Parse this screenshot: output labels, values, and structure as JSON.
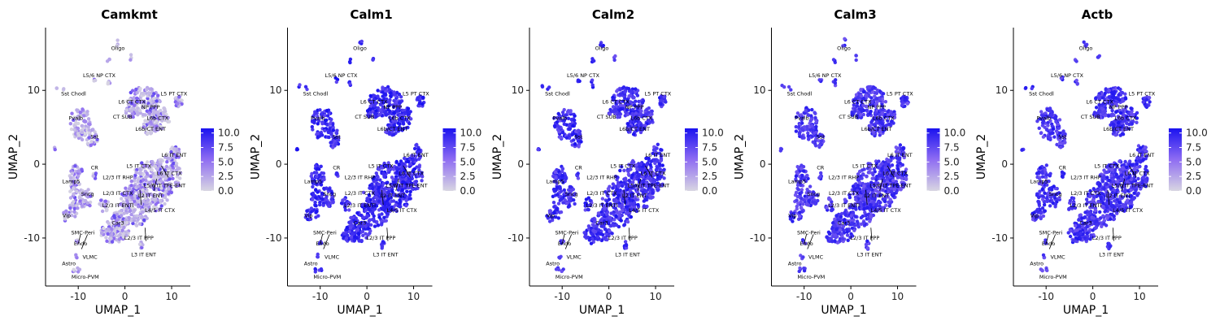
{
  "figure_colors": {
    "low": "#d8d6e2",
    "mid": "#8f6df2",
    "high": "#1a12f0",
    "axis": "#000000"
  },
  "chart_data": [
    {
      "type": "scatter",
      "title": "Camkmt",
      "xlabel": "UMAP_1",
      "ylabel": "UMAP_2",
      "xlim": [
        -17,
        14
      ],
      "ylim": [
        -16.5,
        18.5
      ],
      "xticks": [
        {
          "value": -10,
          "label": "-10"
        },
        {
          "value": 0,
          "label": "0"
        },
        {
          "value": 10,
          "label": "10"
        }
      ],
      "yticks": [
        {
          "value": -10,
          "label": "-10"
        },
        {
          "value": 0,
          "label": "0"
        },
        {
          "value": 10,
          "label": "10"
        }
      ],
      "legend": {
        "ticks": [
          "0.0",
          "2.5",
          "5.0",
          "7.5",
          "10.0"
        ],
        "values": [
          0,
          2.5,
          5,
          7.5,
          10
        ],
        "range": [
          0,
          10.8
        ]
      },
      "level": 0.35
    },
    {
      "type": "scatter",
      "title": "Calm1",
      "xlabel": "UMAP_1",
      "ylabel": "UMAP_2",
      "xlim": [
        -17,
        14
      ],
      "ylim": [
        -16.5,
        18.5
      ],
      "xticks": [
        {
          "value": -10,
          "label": "-10"
        },
        {
          "value": 0,
          "label": "0"
        },
        {
          "value": 10,
          "label": "10"
        }
      ],
      "yticks": [
        {
          "value": -10,
          "label": "-10"
        },
        {
          "value": 0,
          "label": "0"
        },
        {
          "value": 10,
          "label": "10"
        }
      ],
      "legend": {
        "ticks": [
          "0.0",
          "2.5",
          "5.0",
          "7.5",
          "10.0"
        ],
        "values": [
          0,
          2.5,
          5,
          7.5,
          10
        ],
        "range": [
          0,
          10.8
        ]
      },
      "level": 0.85
    },
    {
      "type": "scatter",
      "title": "Calm2",
      "xlabel": "UMAP_1",
      "ylabel": "UMAP_2",
      "xlim": [
        -17,
        14
      ],
      "ylim": [
        -16.5,
        18.5
      ],
      "xticks": [
        {
          "value": -10,
          "label": "-10"
        },
        {
          "value": 0,
          "label": "0"
        },
        {
          "value": 10,
          "label": "10"
        }
      ],
      "yticks": [
        {
          "value": -10,
          "label": "-10"
        },
        {
          "value": 0,
          "label": "0"
        },
        {
          "value": 10,
          "label": "10"
        }
      ],
      "legend": {
        "ticks": [
          "0.0",
          "2.5",
          "5.0",
          "7.5",
          "10.0"
        ],
        "values": [
          0,
          2.5,
          5,
          7.5,
          10
        ],
        "range": [
          0,
          10.8
        ]
      },
      "level": 0.82
    },
    {
      "type": "scatter",
      "title": "Calm3",
      "xlabel": "UMAP_1",
      "ylabel": "UMAP_2",
      "xlim": [
        -17,
        14
      ],
      "ylim": [
        -16.5,
        18.5
      ],
      "xticks": [
        {
          "value": -10,
          "label": "-10"
        },
        {
          "value": 0,
          "label": "0"
        },
        {
          "value": 10,
          "label": "10"
        }
      ],
      "yticks": [
        {
          "value": -10,
          "label": "-10"
        },
        {
          "value": 0,
          "label": "0"
        },
        {
          "value": 10,
          "label": "10"
        }
      ],
      "legend": {
        "ticks": [
          "0.0",
          "2.5",
          "5.0",
          "7.5",
          "10.0"
        ],
        "values": [
          0,
          2.5,
          5,
          7.5,
          10
        ],
        "range": [
          0,
          10.8
        ]
      },
      "level": 0.78
    },
    {
      "type": "scatter",
      "title": "Actb",
      "xlabel": "UMAP_1",
      "ylabel": "UMAP_2",
      "xlim": [
        -17,
        14
      ],
      "ylim": [
        -16.5,
        18.5
      ],
      "xticks": [
        {
          "value": -10,
          "label": "-10"
        },
        {
          "value": 0,
          "label": "0"
        },
        {
          "value": 10,
          "label": "10"
        }
      ],
      "yticks": [
        {
          "value": -10,
          "label": "-10"
        },
        {
          "value": 0,
          "label": "0"
        },
        {
          "value": 10,
          "label": "10"
        }
      ],
      "legend": {
        "ticks": [
          "0.0",
          "2.5",
          "5.0",
          "7.5",
          "10.0"
        ],
        "values": [
          0,
          2.5,
          5,
          7.5,
          10
        ],
        "range": [
          0,
          10.8
        ]
      },
      "level": 0.8
    }
  ],
  "clusters": [
    {
      "label": "Oligo",
      "x": -1.5,
      "y": 15.5
    },
    {
      "label": "L5/6 NP CTX",
      "x": -5.5,
      "y": 11.8
    },
    {
      "label": "Sst Chodl",
      "x": -11,
      "y": 9.3
    },
    {
      "label": "L5 PT CTX",
      "x": 10.5,
      "y": 9.3
    },
    {
      "label": "L6 CT CTX",
      "x": 1.5,
      "y": 8.2
    },
    {
      "label": "NP PPP",
      "x": 5.5,
      "y": 7.5
    },
    {
      "label": "CT SUB",
      "x": -0.5,
      "y": 6.2
    },
    {
      "label": "L6b CTX",
      "x": 7,
      "y": 6
    },
    {
      "label": "Pvalb",
      "x": -10.5,
      "y": 6
    },
    {
      "label": "L6b/CT ENT",
      "x": 5.5,
      "y": 4.5
    },
    {
      "label": "Sst",
      "x": -6.5,
      "y": 3.5
    },
    {
      "label": "L6 IT ENT",
      "x": 10.5,
      "y": 1
    },
    {
      "label": "L5 IT CTX",
      "x": 3,
      "y": -0.5
    },
    {
      "label": "CR",
      "x": -6.5,
      "y": -0.7
    },
    {
      "label": "L6 IT CTX",
      "x": 9.5,
      "y": -1.5
    },
    {
      "label": "L2/3 IT RHP",
      "x": -1.5,
      "y": -2
    },
    {
      "label": "Lamp5",
      "x": -11.5,
      "y": -2.6
    },
    {
      "label": "L5/6 IT TPE-ENT",
      "x": 8.5,
      "y": -3.1
    },
    {
      "label": "L2/3 IT CTX",
      "x": -1.5,
      "y": -4.2
    },
    {
      "label": "Sncg",
      "x": -8,
      "y": -4.3
    },
    {
      "label": "L2 IT ENT",
      "x": 5.5,
      "y": -4.5
    },
    {
      "label": "L2/3 IT ENTl",
      "x": -1.5,
      "y": -5.8
    },
    {
      "label": "L4/5 IT CTX",
      "x": 7.5,
      "y": -6.5
    },
    {
      "label": "Vip",
      "x": -12.5,
      "y": -7.2
    },
    {
      "label": "Car3",
      "x": -1.5,
      "y": -8.2
    },
    {
      "label": "SMC-Peri",
      "x": -9,
      "y": -9.5
    },
    {
      "label": "L2/3 IT PPP",
      "x": 3,
      "y": -10.2
    },
    {
      "label": "Endo",
      "x": -9.5,
      "y": -11
    },
    {
      "label": "L3 IT ENT",
      "x": 4,
      "y": -12.5
    },
    {
      "label": "VLMC",
      "x": -7.5,
      "y": -12.8
    },
    {
      "label": "Astro",
      "x": -12,
      "y": -13.7
    },
    {
      "label": "Micro-PVM",
      "x": -8.5,
      "y": -15.5
    }
  ]
}
